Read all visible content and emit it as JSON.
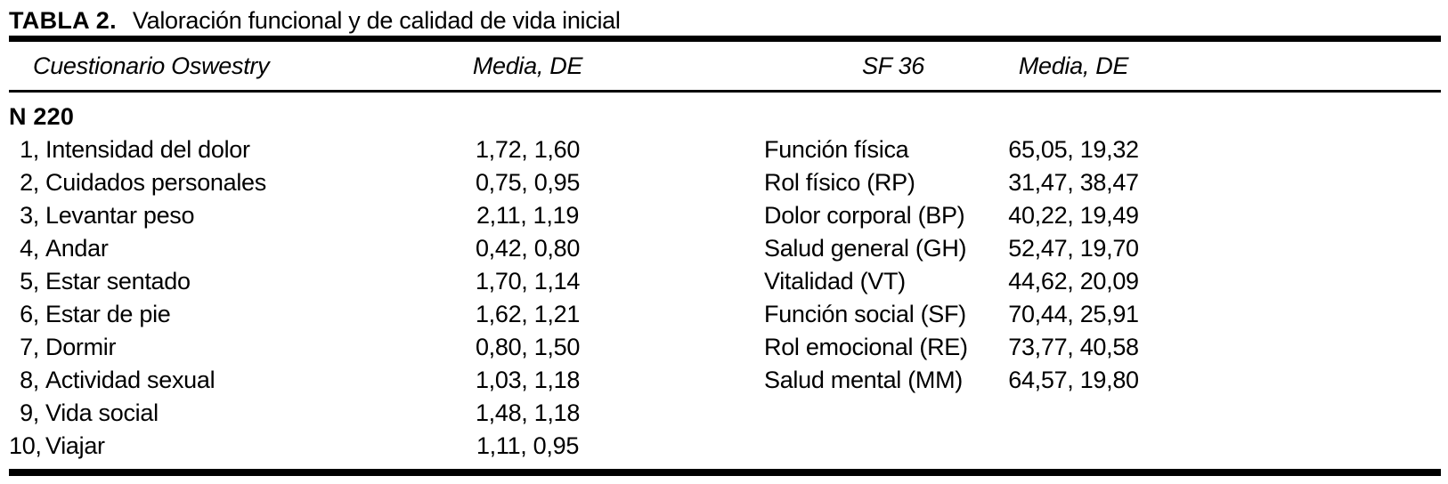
{
  "title": {
    "label": "TABLA 2.",
    "text": "Valoración funcional y de calidad de vida inicial"
  },
  "table": {
    "col_headers": {
      "oswestry": "Cuestionario Oswestry",
      "oswestry_stats": "Media, DE",
      "sf36": "SF 36",
      "sf36_stats": "Media, DE"
    },
    "group_label": "N 220",
    "oswestry_rows": [
      {
        "num": "1,",
        "label": "Intensidad del dolor",
        "value": "1,72, 1,60"
      },
      {
        "num": "2,",
        "label": "Cuidados personales",
        "value": "0,75, 0,95"
      },
      {
        "num": "3,",
        "label": "Levantar peso",
        "value": "2,11, 1,19"
      },
      {
        "num": "4,",
        "label": "Andar",
        "value": "0,42, 0,80"
      },
      {
        "num": "5,",
        "label": "Estar sentado",
        "value": "1,70, 1,14"
      },
      {
        "num": "6,",
        "label": "Estar de pie",
        "value": "1,62, 1,21"
      },
      {
        "num": "7,",
        "label": "Dormir",
        "value": "0,80, 1,50"
      },
      {
        "num": "8,",
        "label": "Actividad sexual",
        "value": "1,03, 1,18"
      },
      {
        "num": "9,",
        "label": "Vida social",
        "value": "1,48, 1,18"
      },
      {
        "num": "10,",
        "label": "Viajar",
        "value": "1,11, 0,95"
      }
    ],
    "sf36_rows": [
      {
        "label": "Función física",
        "value": "65,05, 19,32"
      },
      {
        "label": "Rol físico (RP)",
        "value": "31,47, 38,47"
      },
      {
        "label": "Dolor corporal (BP)",
        "value": "40,22, 19,49"
      },
      {
        "label": "Salud general (GH)",
        "value": "52,47, 19,70"
      },
      {
        "label": "Vitalidad (VT)",
        "value": "44,62, 20,09"
      },
      {
        "label": "Función social (SF)",
        "value": "70,44, 25,91"
      },
      {
        "label": "Rol emocional (RE)",
        "value": "73,77, 40,58"
      },
      {
        "label": "Salud mental (MM)",
        "value": "64,57, 19,80"
      }
    ]
  },
  "colors": {
    "text": "#000000",
    "background": "#ffffff",
    "rule": "#000000"
  }
}
